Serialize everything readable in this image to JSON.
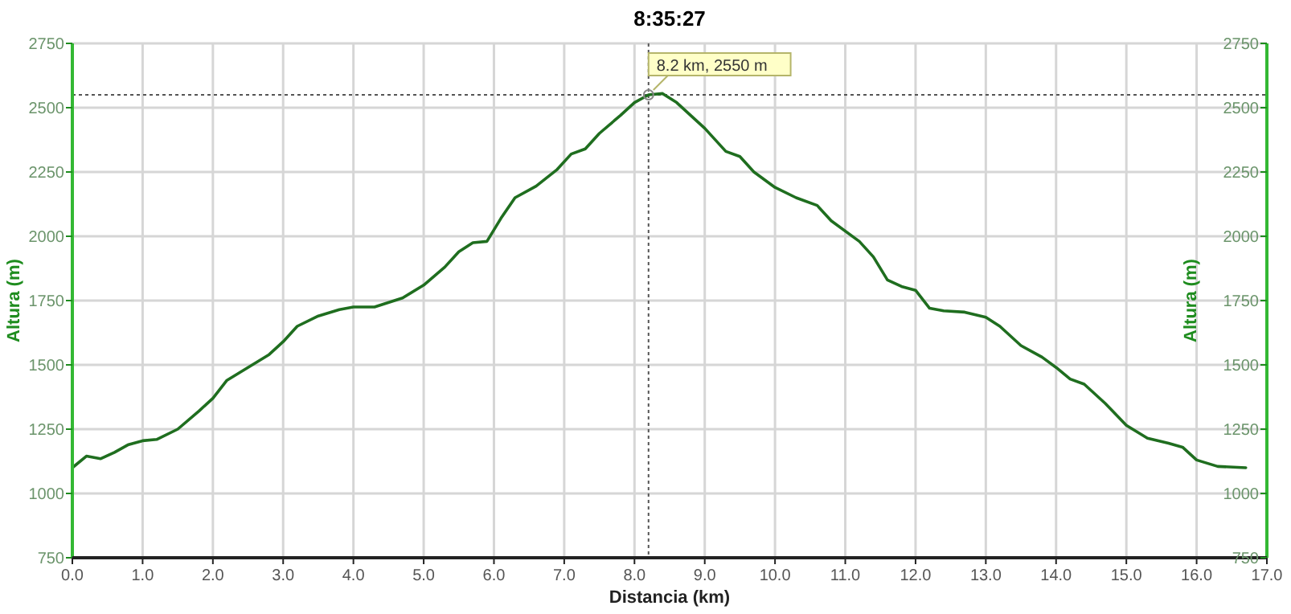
{
  "chart_data": {
    "type": "line",
    "title": "8:35:27",
    "xlabel": "Distancia (km)",
    "ylabel": "Altura (m)",
    "y2label": "Altura (m)",
    "xlim": [
      0,
      17
    ],
    "xticks": [
      {
        "value": 0,
        "label": "0.0"
      },
      {
        "value": 1,
        "label": "1.0"
      },
      {
        "value": 2,
        "label": "2.0"
      },
      {
        "value": 3,
        "label": "3.0"
      },
      {
        "value": 4,
        "label": "4.0"
      },
      {
        "value": 5,
        "label": "5.0"
      },
      {
        "value": 6,
        "label": "6.0"
      },
      {
        "value": 7,
        "label": "7.0"
      },
      {
        "value": 8,
        "label": "8.0"
      },
      {
        "value": 9,
        "label": "9.0"
      },
      {
        "value": 10,
        "label": "10.0"
      },
      {
        "value": 11,
        "label": "11.0"
      },
      {
        "value": 12,
        "label": "12.0"
      },
      {
        "value": 13,
        "label": "13.0"
      },
      {
        "value": 14,
        "label": "14.0"
      },
      {
        "value": 15,
        "label": "15.0"
      },
      {
        "value": 16,
        "label": "16.0"
      },
      {
        "value": 17,
        "label": "17.0"
      }
    ],
    "ylim": [
      750,
      2750
    ],
    "yticks": [
      750,
      1000,
      1250,
      1500,
      1750,
      2000,
      2250,
      2500,
      2750
    ],
    "y2lim": [
      750,
      2750
    ],
    "y2ticks": [
      750,
      1000,
      1250,
      1500,
      1750,
      2000,
      2250,
      2500,
      2750
    ],
    "grid": true,
    "marker": "none",
    "line_style": "solid",
    "x": [
      0,
      0.2,
      0.4,
      0.6,
      0.8,
      1.0,
      1.2,
      1.5,
      1.8,
      2.0,
      2.2,
      2.5,
      2.8,
      3.0,
      3.2,
      3.5,
      3.8,
      4.0,
      4.3,
      4.7,
      5.0,
      5.3,
      5.5,
      5.7,
      5.9,
      6.1,
      6.3,
      6.6,
      6.9,
      7.1,
      7.3,
      7.5,
      7.8,
      8.0,
      8.2,
      8.4,
      8.6,
      9.0,
      9.3,
      9.5,
      9.7,
      10.0,
      10.3,
      10.6,
      10.8,
      11.2,
      11.4,
      11.6,
      11.8,
      12.0,
      12.2,
      12.4,
      12.7,
      13.0,
      13.2,
      13.5,
      13.8,
      14.0,
      14.2,
      14.4,
      14.7,
      15.0,
      15.3,
      15.6,
      15.8,
      16.0,
      16.3,
      16.7
    ],
    "series": [
      {
        "color": "#1f6e1f",
        "values": [
          1100,
          1145,
          1135,
          1160,
          1190,
          1205,
          1210,
          1250,
          1320,
          1370,
          1440,
          1490,
          1540,
          1590,
          1650,
          1690,
          1715,
          1725,
          1725,
          1760,
          1810,
          1880,
          1940,
          1975,
          1980,
          2070,
          2150,
          2195,
          2260,
          2320,
          2340,
          2400,
          2470,
          2520,
          2550,
          2555,
          2520,
          2420,
          2330,
          2310,
          2250,
          2190,
          2150,
          2120,
          2060,
          1980,
          1920,
          1830,
          1805,
          1790,
          1720,
          1710,
          1705,
          1685,
          1650,
          1575,
          1530,
          1490,
          1445,
          1425,
          1350,
          1265,
          1215,
          1195,
          1180,
          1130,
          1105,
          1100
        ]
      }
    ],
    "ref_lines": [
      {
        "axis": "x",
        "value": 8.2,
        "color": "#555555",
        "line_style": "dotted"
      },
      {
        "axis": "y",
        "value": 2550,
        "color": "#555555",
        "line_style": "dotted"
      }
    ],
    "annotations": [
      {
        "text": "8.2 km, 2550 m",
        "x": 8.2,
        "y": 2550
      }
    ]
  }
}
